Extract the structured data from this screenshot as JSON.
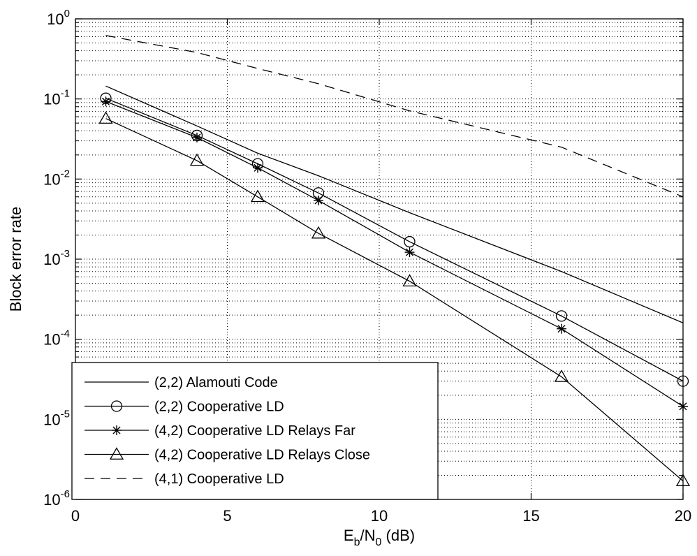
{
  "chart_data": {
    "type": "line",
    "title": "",
    "xlabel": {
      "main": "E",
      "sub1": "b",
      "mid": "/N",
      "sub2": "0",
      "suffix": " (dB)"
    },
    "ylabel": "Block error rate",
    "xlim": [
      0,
      20
    ],
    "ylim": [
      1e-06,
      1
    ],
    "yscale": "log",
    "grid": true,
    "legend_position": "bottom-left",
    "x_ticks": [
      {
        "value": 0,
        "label": "0"
      },
      {
        "value": 5,
        "label": "5"
      },
      {
        "value": 10,
        "label": "10"
      },
      {
        "value": 15,
        "label": "15"
      },
      {
        "value": 20,
        "label": "20"
      }
    ],
    "y_ticks": [
      {
        "value": 1,
        "base": "10",
        "exp": "0"
      },
      {
        "value": 0.1,
        "base": "10",
        "exp": "-1"
      },
      {
        "value": 0.01,
        "base": "10",
        "exp": "-2"
      },
      {
        "value": 0.001,
        "base": "10",
        "exp": "-3"
      },
      {
        "value": 0.0001,
        "base": "10",
        "exp": "-4"
      },
      {
        "value": 1e-05,
        "base": "10",
        "exp": "-5"
      },
      {
        "value": 1e-06,
        "base": "10",
        "exp": "-6"
      }
    ],
    "series": [
      {
        "name": "(2,2) Alamouti Code",
        "marker": "none",
        "dash": "solid",
        "x": [
          1,
          4,
          6,
          8,
          11,
          16,
          20
        ],
        "y": [
          0.145,
          0.046,
          0.021,
          0.011,
          0.0038,
          0.0007,
          0.00016
        ]
      },
      {
        "name": "(2,2) Cooperative LD",
        "marker": "circle",
        "dash": "solid",
        "x": [
          1,
          4,
          6,
          8,
          11,
          16,
          20
        ],
        "y": [
          0.102,
          0.035,
          0.0155,
          0.0067,
          0.00165,
          0.000195,
          3e-05
        ]
      },
      {
        "name": "(4,2) Cooperative LD Relays Far",
        "marker": "asterisk",
        "dash": "solid",
        "x": [
          1,
          4,
          6,
          8,
          11,
          16,
          20
        ],
        "y": [
          0.093,
          0.033,
          0.0138,
          0.0054,
          0.00122,
          0.000135,
          1.45e-05
        ]
      },
      {
        "name": "(4,2) Cooperative LD Relays Close",
        "marker": "triangle",
        "dash": "solid",
        "x": [
          1,
          4,
          6,
          8,
          11,
          16,
          20
        ],
        "y": [
          0.057,
          0.017,
          0.006,
          0.0021,
          0.00053,
          3.4e-05,
          1.7e-06
        ]
      },
      {
        "name": "(4,1) Cooperative LD",
        "marker": "none",
        "dash": "dashed",
        "x": [
          1,
          4,
          6,
          8,
          11,
          16,
          20
        ],
        "y": [
          0.62,
          0.38,
          0.24,
          0.155,
          0.071,
          0.025,
          0.006
        ]
      }
    ]
  }
}
